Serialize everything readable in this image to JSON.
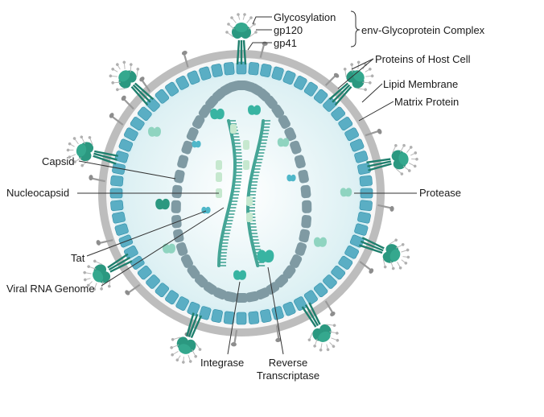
{
  "colors": {
    "outer_membrane": "#bcbcbc",
    "matrix": "#5aaec4",
    "matrix_edge": "#2f8ea8",
    "interior": "#eaf6f8",
    "capsid": "#7f9aa3",
    "rna": "#45a596",
    "nucleocapsid_protein": "#c6e8cf",
    "glycoprotein": "#2b9880",
    "glycoprotein_dark": "#1f7f6d",
    "enzyme": "#38b4a2",
    "light_protein": "#8fd4c0",
    "leader_line": "#333333"
  },
  "labels": {
    "glycosylation": "Glycosylation",
    "gp120": "gp120",
    "gp41": "gp41",
    "env_complex": "env-Glycoprotein Complex",
    "host_proteins": "Proteins of Host Cell",
    "lipid_membrane": "Lipid Membrane",
    "matrix_protein": "Matrix Protein",
    "capsid": "Capsid",
    "nucleocapsid": "Nucleocapsid",
    "protease": "Protease",
    "tat": "Tat",
    "viral_rna": "Viral RNA Genome",
    "integrase": "Integrase",
    "reverse_transcriptase_line1": "Reverse",
    "reverse_transcriptase_line2": "Transcriptase"
  }
}
